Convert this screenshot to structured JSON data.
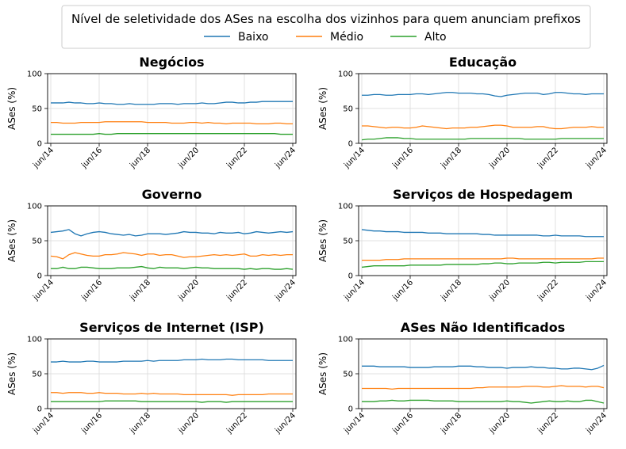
{
  "legend": {
    "title": "Nível de seletividade dos ASes na escolha dos vizinhos para quem anunciam prefixos",
    "entries": [
      {
        "name": "Baixo",
        "color": "#1f77b4"
      },
      {
        "name": "Médio",
        "color": "#ff7f0e"
      },
      {
        "name": "Alto",
        "color": "#2ca02c"
      }
    ]
  },
  "chart_data": [
    {
      "type": "line",
      "title": "Negócios",
      "ylabel": "ASes (%)",
      "ylim": [
        0,
        100
      ],
      "yticks": [
        0,
        50,
        100
      ],
      "x_ticks": [
        "jun/14",
        "jun/16",
        "jun/18",
        "jun/20",
        "jun/22",
        "jun/24"
      ],
      "x_range": [
        "2014-06",
        "2024-06"
      ],
      "grid": true,
      "series": [
        {
          "name": "Baixo",
          "color": "#1f77b4",
          "values": [
            58,
            58,
            58,
            59,
            58,
            58,
            57,
            57,
            58,
            57,
            57,
            56,
            56,
            57,
            56,
            56,
            56,
            56,
            57,
            57,
            57,
            56,
            57,
            57,
            57,
            58,
            57,
            57,
            58,
            59,
            59,
            58,
            58,
            59,
            59,
            60,
            60,
            60,
            60,
            60,
            60
          ]
        },
        {
          "name": "Médio",
          "color": "#ff7f0e",
          "values": [
            30,
            30,
            29,
            29,
            29,
            30,
            30,
            30,
            30,
            31,
            31,
            31,
            31,
            31,
            31,
            31,
            30,
            30,
            30,
            30,
            29,
            29,
            29,
            30,
            30,
            29,
            30,
            29,
            29,
            28,
            29,
            29,
            29,
            29,
            28,
            28,
            28,
            29,
            29,
            28,
            28
          ]
        },
        {
          "name": "Alto",
          "color": "#2ca02c",
          "values": [
            13,
            13,
            13,
            13,
            13,
            13,
            13,
            13,
            14,
            13,
            13,
            14,
            14,
            14,
            14,
            14,
            14,
            14,
            14,
            14,
            14,
            14,
            14,
            14,
            14,
            14,
            14,
            14,
            14,
            14,
            14,
            14,
            14,
            14,
            14,
            14,
            14,
            14,
            13,
            13,
            13
          ]
        }
      ]
    },
    {
      "type": "line",
      "title": "Educação",
      "ylabel": "ASes (%)",
      "ylim": [
        0,
        100
      ],
      "yticks": [
        0,
        50,
        100
      ],
      "x_ticks": [
        "jun/14",
        "jun/16",
        "jun/18",
        "jun/20",
        "jun/22",
        "jun/24"
      ],
      "x_range": [
        "2014-06",
        "2024-06"
      ],
      "grid": true,
      "series": [
        {
          "name": "Baixo",
          "color": "#1f77b4",
          "values": [
            69,
            69,
            70,
            70,
            69,
            69,
            70,
            70,
            70,
            71,
            71,
            70,
            71,
            72,
            73,
            73,
            72,
            72,
            72,
            71,
            71,
            70,
            68,
            67,
            69,
            70,
            71,
            72,
            72,
            72,
            70,
            71,
            73,
            73,
            72,
            71,
            71,
            70,
            71,
            71,
            71
          ]
        },
        {
          "name": "Médio",
          "color": "#ff7f0e",
          "values": [
            25,
            25,
            24,
            23,
            22,
            23,
            23,
            22,
            22,
            23,
            25,
            24,
            23,
            22,
            21,
            22,
            22,
            22,
            23,
            23,
            24,
            25,
            26,
            26,
            25,
            23,
            23,
            23,
            23,
            24,
            24,
            22,
            21,
            21,
            22,
            23,
            23,
            23,
            24,
            23,
            23
          ]
        },
        {
          "name": "Alto",
          "color": "#2ca02c",
          "values": [
            5,
            6,
            6,
            7,
            8,
            8,
            8,
            7,
            7,
            6,
            6,
            6,
            6,
            6,
            6,
            6,
            6,
            6,
            7,
            7,
            7,
            7,
            7,
            7,
            7,
            7,
            7,
            6,
            6,
            6,
            6,
            6,
            6,
            7,
            7,
            7,
            7,
            7,
            7,
            7,
            7
          ]
        }
      ]
    },
    {
      "type": "line",
      "title": "Governo",
      "ylabel": "ASes (%)",
      "ylim": [
        0,
        100
      ],
      "yticks": [
        0,
        50,
        100
      ],
      "x_ticks": [
        "jun/14",
        "jun/16",
        "jun/18",
        "jun/20",
        "jun/22",
        "jun/24"
      ],
      "x_range": [
        "2014-06",
        "2024-06"
      ],
      "grid": true,
      "series": [
        {
          "name": "Baixo",
          "color": "#1f77b4",
          "values": [
            62,
            63,
            64,
            66,
            60,
            57,
            60,
            62,
            63,
            62,
            60,
            59,
            58,
            59,
            57,
            58,
            60,
            60,
            60,
            59,
            60,
            61,
            63,
            62,
            62,
            61,
            61,
            60,
            62,
            61,
            61,
            62,
            60,
            61,
            63,
            62,
            61,
            62,
            63,
            62,
            63
          ]
        },
        {
          "name": "Médio",
          "color": "#ff7f0e",
          "values": [
            28,
            27,
            24,
            30,
            33,
            31,
            29,
            28,
            28,
            30,
            30,
            31,
            33,
            32,
            31,
            29,
            31,
            31,
            29,
            30,
            30,
            28,
            26,
            27,
            27,
            28,
            29,
            30,
            29,
            30,
            29,
            30,
            31,
            28,
            28,
            30,
            29,
            30,
            29,
            30,
            30
          ]
        },
        {
          "name": "Alto",
          "color": "#2ca02c",
          "values": [
            10,
            10,
            12,
            10,
            10,
            12,
            12,
            11,
            10,
            10,
            10,
            11,
            11,
            11,
            12,
            13,
            11,
            10,
            12,
            11,
            11,
            11,
            10,
            11,
            12,
            11,
            11,
            10,
            10,
            10,
            10,
            10,
            9,
            10,
            9,
            10,
            10,
            9,
            9,
            10,
            9
          ]
        }
      ]
    },
    {
      "type": "line",
      "title": "Serviços de Hospedagem",
      "ylabel": "ASes (%)",
      "ylim": [
        0,
        100
      ],
      "yticks": [
        0,
        50,
        100
      ],
      "x_ticks": [
        "jun/14",
        "jun/16",
        "jun/18",
        "jun/20",
        "jun/22",
        "jun/24"
      ],
      "x_range": [
        "2014-06",
        "2024-06"
      ],
      "grid": true,
      "series": [
        {
          "name": "Baixo",
          "color": "#1f77b4",
          "values": [
            66,
            65,
            64,
            64,
            63,
            63,
            63,
            62,
            62,
            62,
            62,
            61,
            61,
            61,
            60,
            60,
            60,
            60,
            60,
            60,
            59,
            59,
            58,
            58,
            58,
            58,
            58,
            58,
            58,
            58,
            57,
            57,
            58,
            57,
            57,
            57,
            57,
            56,
            56,
            56,
            56
          ]
        },
        {
          "name": "Médio",
          "color": "#ff7f0e",
          "values": [
            22,
            22,
            22,
            22,
            23,
            23,
            23,
            24,
            24,
            24,
            24,
            24,
            24,
            24,
            24,
            24,
            24,
            24,
            24,
            24,
            24,
            24,
            24,
            24,
            25,
            25,
            24,
            24,
            24,
            24,
            24,
            24,
            24,
            24,
            24,
            24,
            24,
            24,
            24,
            25,
            25
          ]
        },
        {
          "name": "Alto",
          "color": "#2ca02c",
          "values": [
            12,
            13,
            14,
            14,
            14,
            14,
            14,
            14,
            15,
            15,
            15,
            15,
            15,
            15,
            16,
            16,
            16,
            16,
            16,
            16,
            17,
            17,
            18,
            18,
            17,
            17,
            18,
            18,
            18,
            18,
            19,
            19,
            18,
            19,
            19,
            19,
            19,
            20,
            20,
            20,
            20
          ]
        }
      ]
    },
    {
      "type": "line",
      "title": "Serviços de Internet (ISP)",
      "ylabel": "ASes (%)",
      "ylim": [
        0,
        100
      ],
      "yticks": [
        0,
        50,
        100
      ],
      "x_ticks": [
        "jun/14",
        "jun/16",
        "jun/18",
        "jun/20",
        "jun/22",
        "jun/24"
      ],
      "x_range": [
        "2014-06",
        "2024-06"
      ],
      "grid": true,
      "series": [
        {
          "name": "Baixo",
          "color": "#1f77b4",
          "values": [
            67,
            67,
            68,
            67,
            67,
            67,
            68,
            68,
            67,
            67,
            67,
            67,
            68,
            68,
            68,
            68,
            69,
            68,
            69,
            69,
            69,
            69,
            70,
            70,
            70,
            71,
            70,
            70,
            70,
            71,
            71,
            70,
            70,
            70,
            70,
            70,
            69,
            69,
            69,
            69,
            69
          ]
        },
        {
          "name": "Médio",
          "color": "#ff7f0e",
          "values": [
            23,
            23,
            22,
            23,
            23,
            23,
            22,
            22,
            23,
            22,
            22,
            22,
            21,
            21,
            21,
            22,
            21,
            22,
            21,
            21,
            21,
            21,
            20,
            20,
            20,
            20,
            20,
            20,
            20,
            20,
            19,
            20,
            20,
            20,
            20,
            20,
            21,
            21,
            21,
            21,
            21
          ]
        },
        {
          "name": "Alto",
          "color": "#2ca02c",
          "values": [
            10,
            10,
            10,
            10,
            10,
            10,
            10,
            10,
            10,
            11,
            11,
            11,
            11,
            11,
            11,
            10,
            10,
            10,
            10,
            10,
            10,
            10,
            10,
            10,
            10,
            9,
            10,
            10,
            10,
            9,
            10,
            10,
            10,
            10,
            10,
            10,
            10,
            10,
            10,
            10,
            10
          ]
        }
      ]
    },
    {
      "type": "line",
      "title": "ASes Não Identificados",
      "ylabel": "ASes (%)",
      "ylim": [
        0,
        100
      ],
      "yticks": [
        0,
        50,
        100
      ],
      "x_ticks": [
        "jun/14",
        "jun/16",
        "jun/18",
        "jun/20",
        "jun/22",
        "jun/24"
      ],
      "x_range": [
        "2014-06",
        "2024-06"
      ],
      "grid": true,
      "series": [
        {
          "name": "Baixo",
          "color": "#1f77b4",
          "values": [
            61,
            61,
            61,
            60,
            60,
            60,
            60,
            60,
            59,
            59,
            59,
            59,
            60,
            60,
            60,
            60,
            61,
            61,
            61,
            60,
            60,
            59,
            59,
            59,
            58,
            59,
            59,
            59,
            60,
            59,
            59,
            58,
            58,
            57,
            57,
            58,
            58,
            57,
            56,
            58,
            62
          ]
        },
        {
          "name": "Médio",
          "color": "#ff7f0e",
          "values": [
            29,
            29,
            29,
            29,
            29,
            28,
            29,
            29,
            29,
            29,
            29,
            29,
            29,
            29,
            29,
            29,
            29,
            29,
            29,
            30,
            30,
            31,
            31,
            31,
            31,
            31,
            31,
            32,
            32,
            32,
            31,
            31,
            32,
            33,
            32,
            32,
            32,
            31,
            32,
            32,
            30
          ]
        },
        {
          "name": "Alto",
          "color": "#2ca02c",
          "values": [
            10,
            10,
            10,
            11,
            11,
            12,
            11,
            11,
            12,
            12,
            12,
            12,
            11,
            11,
            11,
            11,
            10,
            10,
            10,
            10,
            10,
            10,
            10,
            10,
            11,
            10,
            10,
            9,
            8,
            9,
            10,
            11,
            10,
            10,
            11,
            10,
            10,
            12,
            12,
            10,
            8
          ]
        }
      ]
    }
  ]
}
